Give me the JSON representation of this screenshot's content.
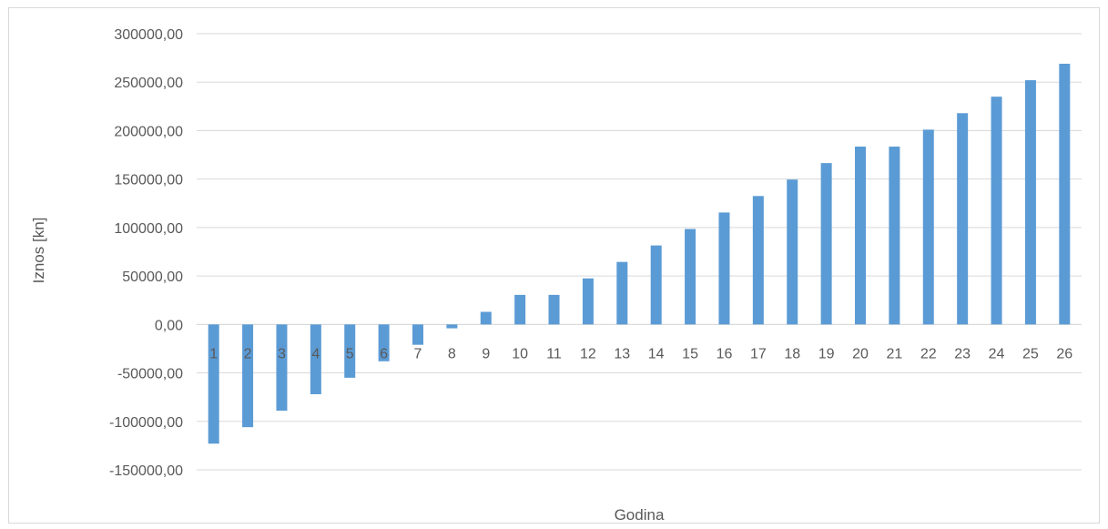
{
  "chart_data": {
    "type": "bar",
    "title": "",
    "xlabel": "Godina",
    "ylabel": "Iznos [kn]",
    "categories": [
      "1",
      "2",
      "3",
      "4",
      "5",
      "6",
      "7",
      "8",
      "9",
      "10",
      "11",
      "12",
      "13",
      "14",
      "15",
      "16",
      "17",
      "18",
      "19",
      "20",
      "21",
      "22",
      "23",
      "24",
      "25",
      "26"
    ],
    "values": [
      -123000,
      -106000,
      -89000,
      -72000,
      -55000,
      -38000,
      -21000,
      -4000,
      13000,
      30500,
      30500,
      47500,
      64500,
      81500,
      98500,
      115500,
      132500,
      149500,
      166500,
      183500,
      183500,
      201000,
      218000,
      235000,
      252000,
      269000
    ],
    "ylim": [
      -150000,
      300000
    ],
    "yticks": [
      "300000,00",
      "250000,00",
      "200000,00",
      "150000,00",
      "100000,00",
      "50000,00",
      "0,00",
      "-50000,00",
      "-100000,00",
      "-150000,00"
    ],
    "ytick_values": [
      300000,
      250000,
      200000,
      150000,
      100000,
      50000,
      0,
      -50000,
      -100000,
      -150000
    ],
    "grid": true,
    "legend": "none",
    "bar_color": "#5b9bd5",
    "grid_color": "#d9d9d9",
    "text_color": "#595959"
  }
}
